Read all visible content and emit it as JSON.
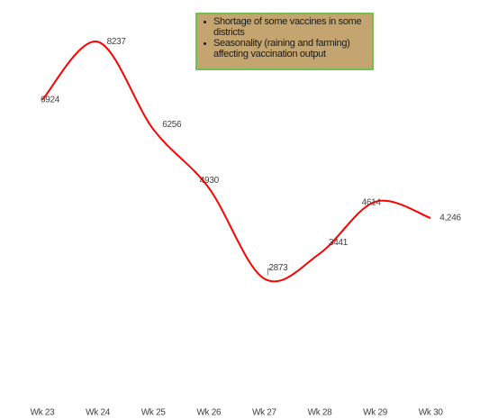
{
  "chart_data": {
    "type": "line",
    "categories": [
      "Wk 23",
      "Wk 24",
      "Wk 25",
      "Wk 26",
      "Wk 27",
      "Wk 28",
      "Wk 29",
      "Wk 30"
    ],
    "values": [
      6924,
      8237,
      6256,
      4930,
      2873,
      3441,
      4614,
      4246
    ],
    "value_labels": [
      "6924",
      "8237",
      "6256",
      "4930",
      "2873",
      "3441",
      "4614",
      "4,246"
    ],
    "color": "#ff0000",
    "annotations": [
      "Shortage of some vaccines in some districts",
      "Seasonality (raining and farming) affecting vaccination output"
    ]
  }
}
